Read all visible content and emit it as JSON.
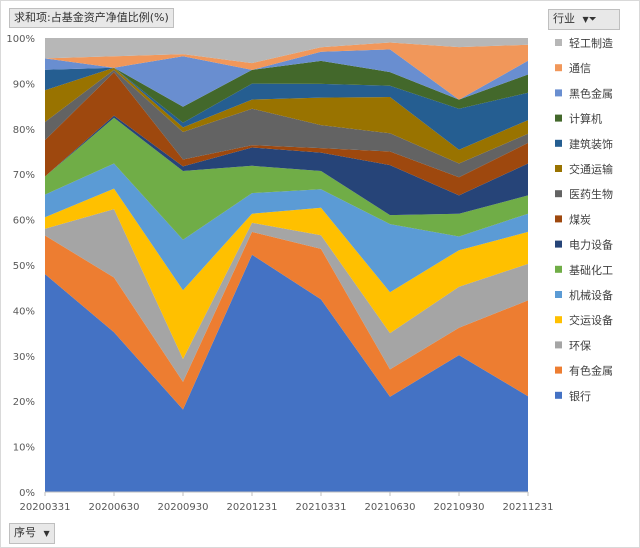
{
  "pivot": {
    "value_field": "求和项:占基金资产净值比例(%)",
    "legend_field": "行业",
    "axis_field": "序号"
  },
  "chart_data": {
    "type": "area",
    "stacked": true,
    "normalized": true,
    "categories": [
      "20200331",
      "20200630",
      "20200930",
      "20201231",
      "20210331",
      "20210630",
      "20210930",
      "20211231"
    ],
    "ylim": [
      0,
      100
    ],
    "yticks": [
      "0%",
      "10%",
      "20%",
      "30%",
      "40%",
      "50%",
      "60%",
      "70%",
      "80%",
      "90%",
      "100%"
    ],
    "legend_position": "right",
    "series": [
      {
        "name": "银行",
        "color": "#4472c4",
        "values": [
          48,
          35,
          18,
          52,
          42,
          21,
          30,
          21
        ]
      },
      {
        "name": "有色金属",
        "color": "#ed7d31",
        "values": [
          8.5,
          12,
          6,
          5,
          11,
          6,
          6,
          21
        ]
      },
      {
        "name": "环保",
        "color": "#a5a5a5",
        "values": [
          1.5,
          15,
          5,
          2,
          3,
          8,
          9,
          8
        ]
      },
      {
        "name": "交运设备",
        "color": "#ffc000",
        "values": [
          2.5,
          4.5,
          15,
          2,
          6,
          9,
          8,
          7
        ]
      },
      {
        "name": "机械设备",
        "color": "#5b9bd5",
        "values": [
          5,
          5.5,
          11,
          4.5,
          4,
          15,
          3,
          4
        ]
      },
      {
        "name": "基础化工",
        "color": "#70ad47",
        "values": [
          4,
          10,
          15,
          6,
          4,
          2,
          5,
          4
        ]
      },
      {
        "name": "电力设备",
        "color": "#264478",
        "values": [
          0,
          0.5,
          1,
          4,
          4,
          11,
          4,
          7
        ]
      },
      {
        "name": "煤炭",
        "color": "#9e480e",
        "values": [
          8,
          9.5,
          1.5,
          0.5,
          1,
          3,
          4,
          4.5
        ]
      },
      {
        "name": "医药生物",
        "color": "#636363",
        "values": [
          4,
          0.5,
          6,
          8,
          5,
          4,
          3,
          2
        ]
      },
      {
        "name": "交通运输",
        "color": "#997300",
        "values": [
          7,
          0.5,
          1,
          2,
          6,
          8,
          3,
          3
        ]
      },
      {
        "name": "建筑装饰",
        "color": "#255e91",
        "values": [
          4.5,
          0,
          1,
          3.5,
          3,
          2.5,
          9,
          6
        ]
      },
      {
        "name": "计算机",
        "color": "#43682b",
        "values": [
          0,
          0,
          3.5,
          3,
          5,
          3,
          2,
          4
        ]
      },
      {
        "name": "黑色金属",
        "color": "#698ed0",
        "values": [
          2.5,
          0,
          11,
          0,
          2,
          5,
          0,
          3
        ]
      },
      {
        "name": "通信",
        "color": "#f1975a",
        "values": [
          0,
          2.5,
          0.5,
          1.5,
          1,
          1.5,
          11.5,
          3.5
        ]
      },
      {
        "name": "轻工制造",
        "color": "#b7b7b7",
        "values": [
          4.5,
          4,
          3.5,
          5.5,
          2,
          1,
          2,
          1.5
        ]
      }
    ]
  }
}
